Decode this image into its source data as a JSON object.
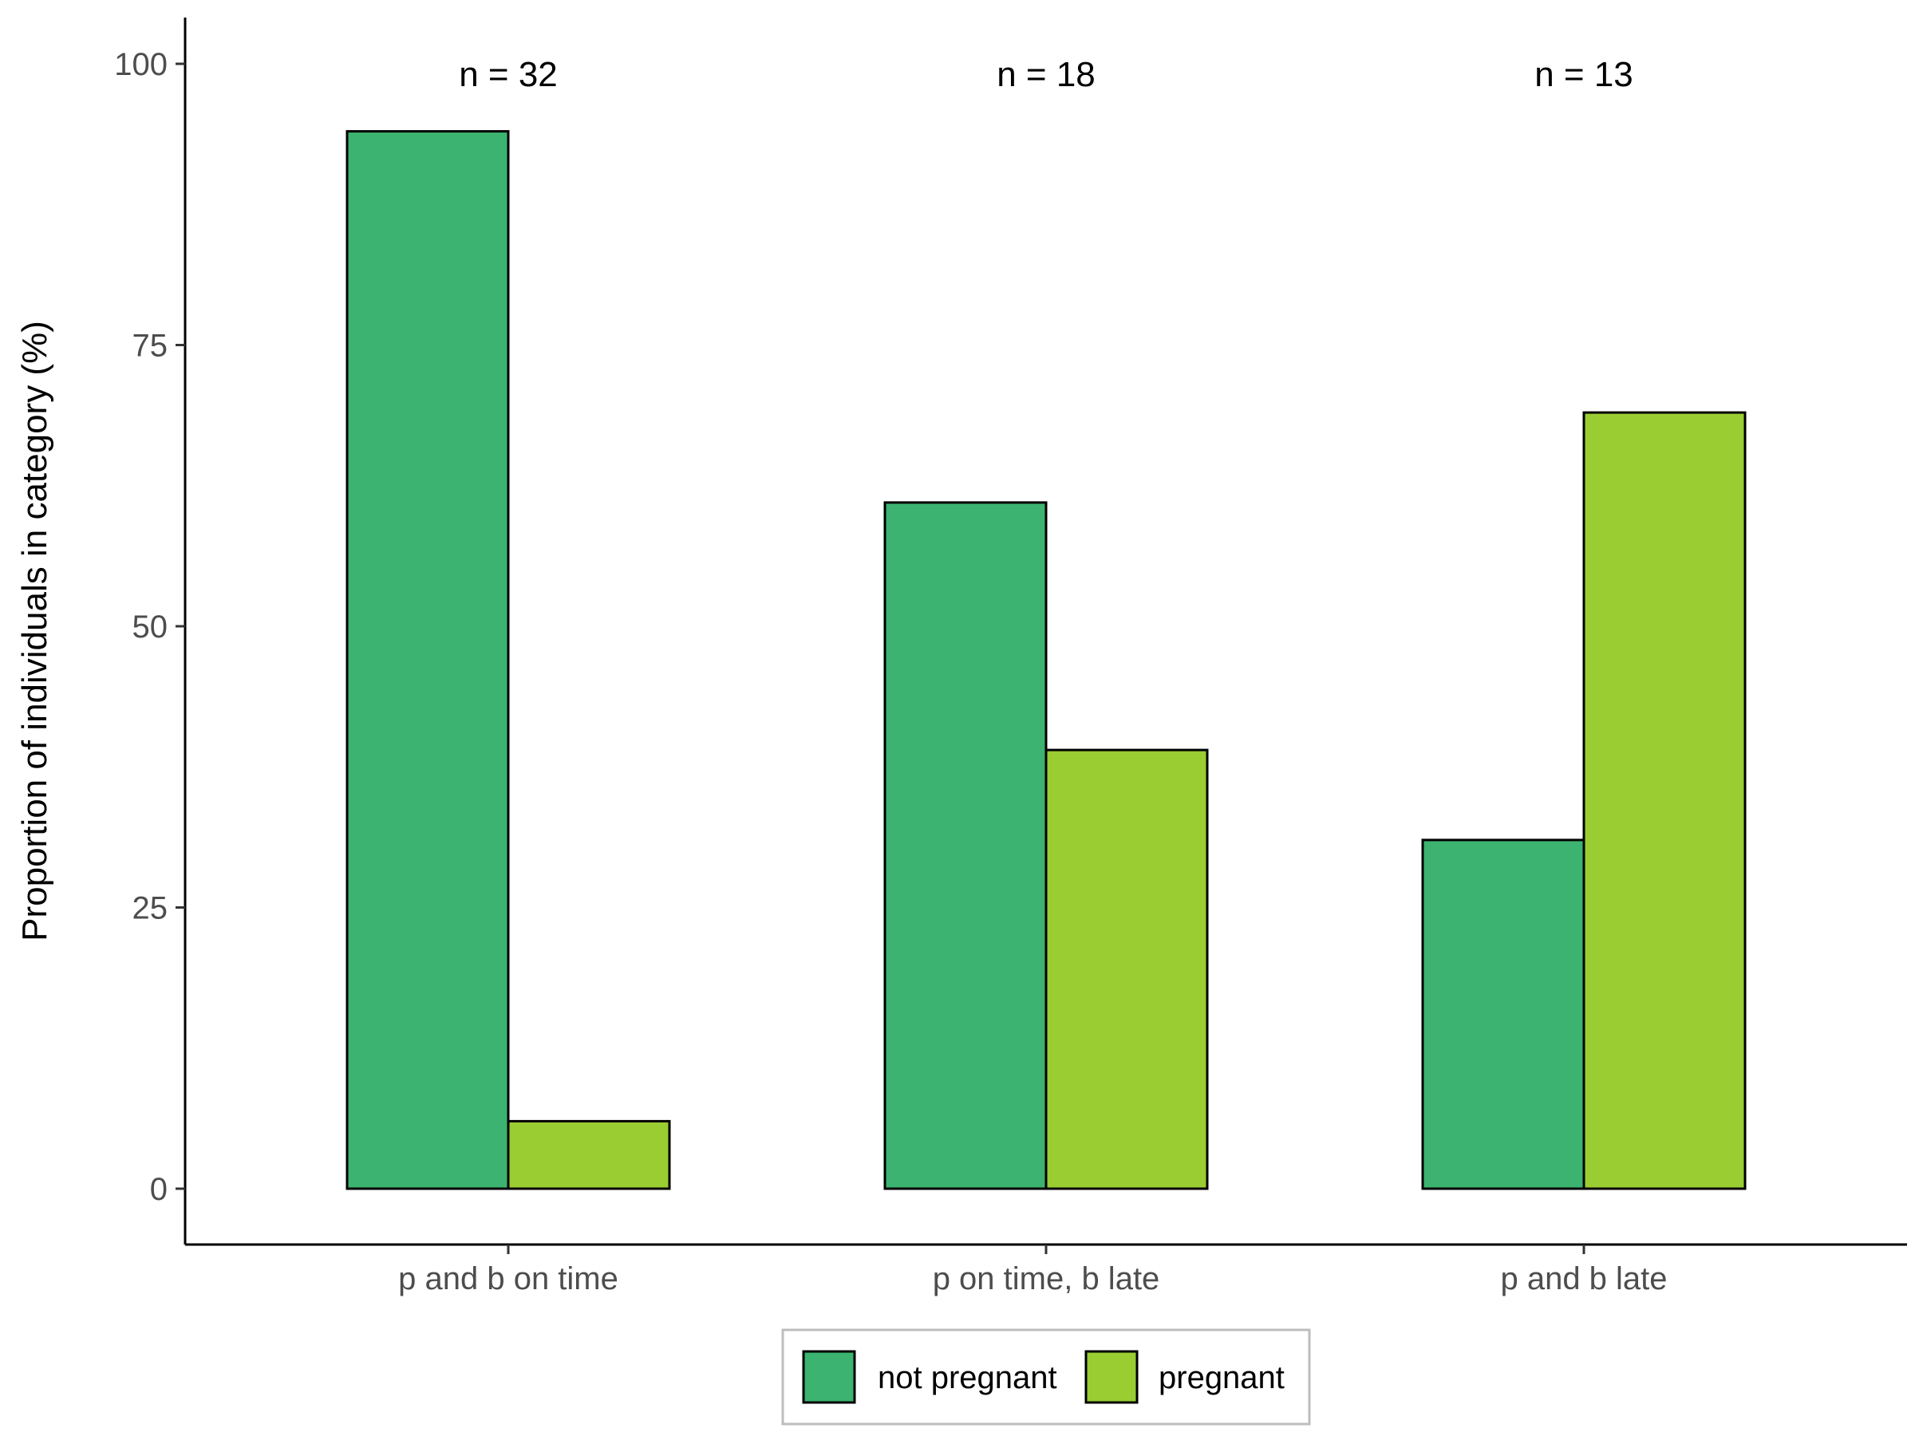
{
  "chart_data": {
    "type": "bar",
    "categories": [
      "p and b on time",
      "p on time, b late",
      "p and b late"
    ],
    "series": [
      {
        "name": "not pregnant",
        "values": [
          94,
          61,
          31
        ],
        "color": "#3cb371"
      },
      {
        "name": "pregnant",
        "values": [
          6,
          39,
          69
        ],
        "color": "#9acd32"
      }
    ],
    "annotations": [
      "n = 32",
      "n = 18",
      "n = 13"
    ],
    "ylabel": "Proportion of individuals in category (%)",
    "xlabel": "",
    "ylim": [
      0,
      100
    ],
    "yticks": [
      "0",
      "25",
      "50",
      "75",
      "100"
    ],
    "legend_position": "bottom",
    "grid": false
  }
}
